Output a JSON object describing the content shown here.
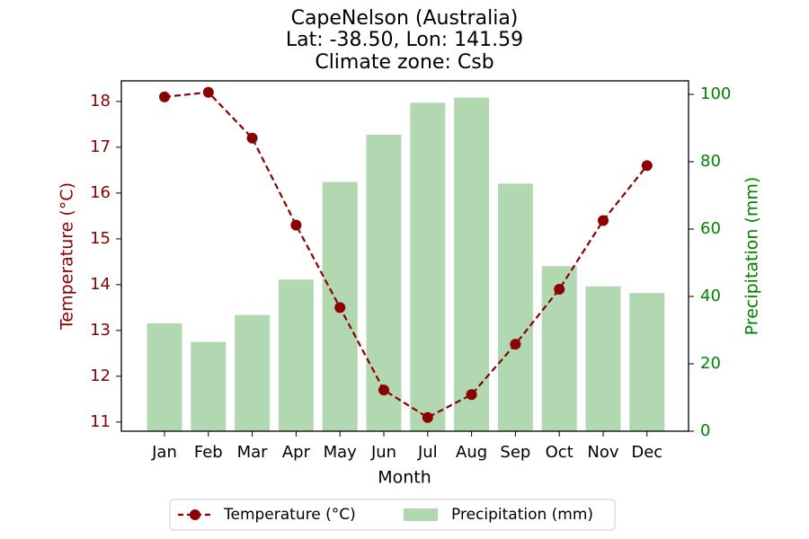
{
  "chart_data": {
    "type": "bar+line",
    "title_lines": [
      "CapeNelson (Australia)",
      "Lat: -38.50, Lon: 141.59",
      "Climate zone: Csb"
    ],
    "xlabel": "Month",
    "categories": [
      "Jan",
      "Feb",
      "Mar",
      "Apr",
      "May",
      "Jun",
      "Jul",
      "Aug",
      "Sep",
      "Oct",
      "Nov",
      "Dec"
    ],
    "y_left": {
      "label": "Temperature (°C)",
      "ylim": [
        10.8,
        18.45
      ],
      "ticks": [
        11,
        12,
        13,
        14,
        15,
        16,
        17,
        18
      ],
      "color": "#8b0000"
    },
    "y_right": {
      "label": "Precipitation (mm)",
      "ylim": [
        0,
        104
      ],
      "ticks": [
        0,
        20,
        40,
        60,
        80,
        100
      ],
      "color": "#008000"
    },
    "series": [
      {
        "name": "Temperature (°C)",
        "type": "line",
        "axis": "left",
        "color": "#8b0000",
        "values": [
          18.1,
          18.2,
          17.2,
          15.3,
          13.5,
          11.7,
          11.1,
          11.6,
          12.7,
          13.9,
          15.4,
          16.6
        ]
      },
      {
        "name": "Precipitation (mm)",
        "type": "bar",
        "axis": "right",
        "color": "#b2d8b2",
        "values": [
          32,
          26.5,
          34.5,
          45,
          74,
          88,
          97.5,
          99,
          73.5,
          49,
          43,
          41
        ]
      }
    ],
    "legend_position": "bottom-center",
    "grid": false
  }
}
